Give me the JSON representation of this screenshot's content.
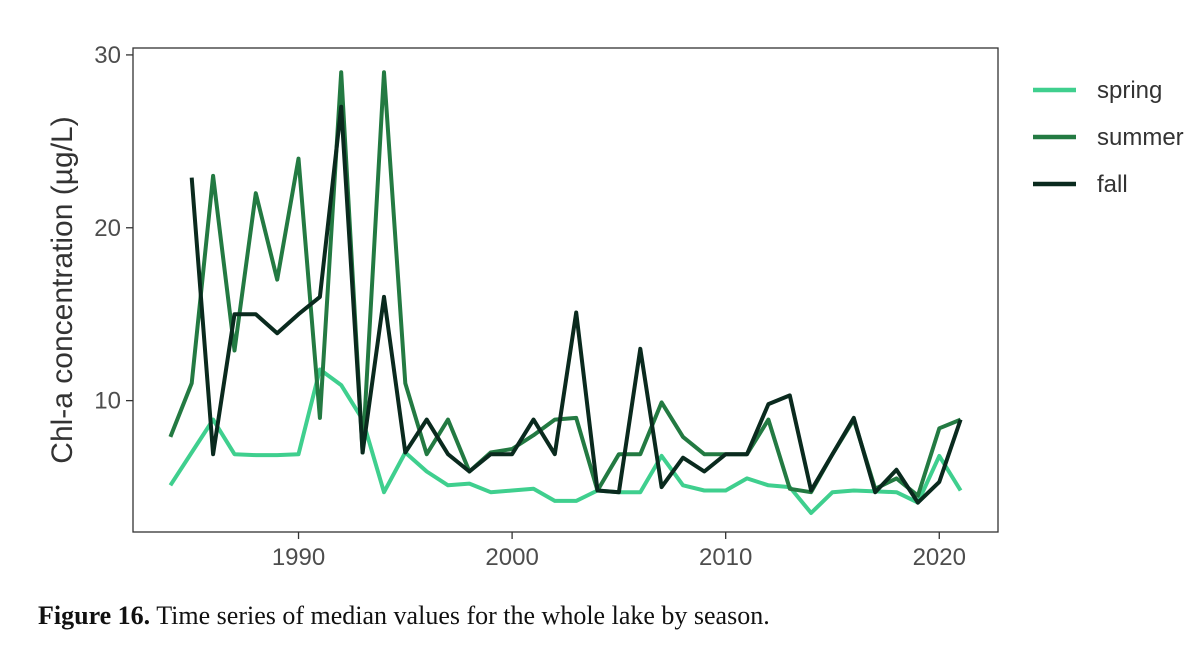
{
  "caption": {
    "label": "Figure 16.",
    "text": " Time series of median values for the whole lake by season."
  },
  "chart_data": {
    "type": "line",
    "title": "",
    "xlabel": "",
    "ylabel": "Chl-a concentration (µg/L)",
    "xlim": [
      1982.25,
      2022.75
    ],
    "ylim": [
      2.4,
      30.4
    ],
    "xticks": [
      1990,
      2000,
      2010,
      2020
    ],
    "yticks": [
      10,
      20,
      30
    ],
    "grid": false,
    "legend_position": "right",
    "x": [
      1984,
      1985,
      1986,
      1987,
      1988,
      1989,
      1990,
      1991,
      1992,
      1993,
      1994,
      1995,
      1996,
      1997,
      1998,
      1999,
      2000,
      2001,
      2002,
      2003,
      2004,
      2005,
      2006,
      2007,
      2008,
      2009,
      2010,
      2011,
      2012,
      2013,
      2014,
      2015,
      2016,
      2017,
      2018,
      2019,
      2020,
      2021
    ],
    "series": [
      {
        "name": "spring",
        "color": "#3fcf8e",
        "values": [
          5.1,
          7.0,
          8.9,
          6.9,
          6.85,
          6.85,
          6.9,
          11.8,
          10.9,
          8.9,
          4.7,
          7.0,
          5.9,
          5.1,
          5.2,
          4.7,
          4.8,
          4.9,
          4.2,
          4.2,
          4.8,
          4.7,
          4.7,
          6.8,
          5.1,
          4.8,
          4.8,
          5.5,
          5.1,
          5.0,
          3.5,
          4.7,
          4.8,
          4.75,
          4.7,
          4.1,
          6.8,
          4.8
        ]
      },
      {
        "name": "summer",
        "color": "#237a42",
        "values": [
          7.9,
          11.0,
          23.0,
          12.9,
          22.0,
          17.0,
          24.0,
          9.0,
          29.0,
          7.0,
          29.0,
          11.0,
          6.9,
          8.9,
          5.9,
          7.0,
          7.2,
          8.0,
          8.9,
          9.0,
          4.8,
          6.9,
          6.9,
          9.9,
          7.9,
          6.9,
          6.9,
          6.9,
          8.9,
          4.9,
          4.7,
          6.9,
          8.9,
          4.9,
          5.5,
          4.5,
          8.4,
          8.9
        ]
      },
      {
        "name": "fall",
        "color": "#0a2a1e",
        "values": [
          null,
          22.9,
          6.9,
          15.0,
          15.0,
          13.9,
          15.0,
          16.0,
          27.0,
          7.0,
          16.0,
          7.0,
          8.9,
          6.9,
          5.9,
          6.9,
          6.9,
          8.9,
          6.9,
          15.1,
          4.8,
          4.7,
          13.0,
          5.0,
          6.7,
          5.9,
          6.9,
          6.9,
          9.8,
          10.3,
          4.8,
          6.9,
          9.0,
          4.7,
          6.0,
          4.1,
          5.3,
          8.9
        ]
      }
    ]
  }
}
